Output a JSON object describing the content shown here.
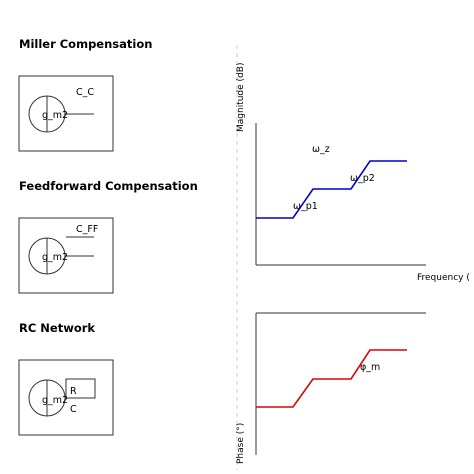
{
  "sections": [
    {
      "title": "Miller Compensation",
      "amp_label": "g_m2",
      "cap_label": "C_C"
    },
    {
      "title": "Feedforward Compensation",
      "amp_label": "g_m2",
      "cap_label": "C_FF"
    },
    {
      "title": "RC Network",
      "amp_label": "g_m2",
      "r_label": "R",
      "c_label": "C"
    }
  ],
  "magnitude_plot": {
    "y_label": "Magnitude (dB)",
    "x_label": "Frequency (",
    "annotations": [
      "ω_z",
      "ω_p1",
      "ω_p2"
    ],
    "color": "#0000cc"
  },
  "phase_plot": {
    "y_label": "Phase (°)",
    "annotations": [
      "φ_m"
    ],
    "color": "#dd0000"
  }
}
